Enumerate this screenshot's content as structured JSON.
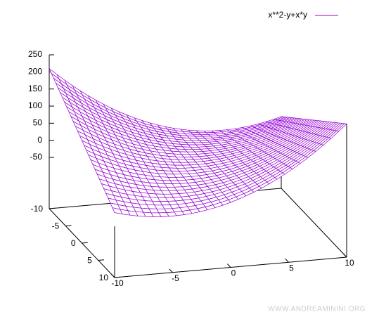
{
  "chart_data": {
    "type": "surface",
    "series": [
      {
        "name": "x**2-y+x*y",
        "color": "#9400d3",
        "back_color": "#009e73"
      }
    ],
    "xlim": [
      -10,
      10
    ],
    "ylim": [
      -10,
      10
    ],
    "zlim": [
      -50,
      250
    ],
    "xticks": [
      -10,
      -5,
      0,
      5,
      10
    ],
    "yticks": [
      -10,
      -5,
      0,
      5,
      10
    ],
    "zticks": [
      -50,
      0,
      50,
      100,
      150,
      200,
      250
    ],
    "ticslevel": 0.5,
    "isosamples": 30,
    "legend": "top-right"
  },
  "watermark": "WWW.ANDREAMININI.ORG"
}
